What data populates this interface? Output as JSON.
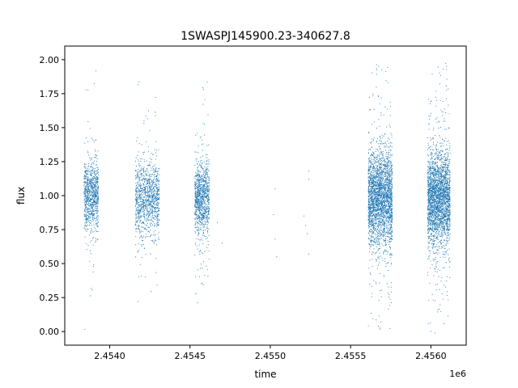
{
  "chart_data": {
    "type": "scatter",
    "title": "1SWASPJ145900.23-340627.8",
    "xlabel": "time",
    "ylabel": "flux",
    "x_offset_label": "1e6",
    "xlim": [
      2.45372,
      2.45622
    ],
    "ylim": [
      -0.1,
      2.1
    ],
    "x_ticks": [
      2.454,
      2.4545,
      2.455,
      2.4555,
      2.456
    ],
    "x_tick_labels": [
      "2.4540",
      "2.4545",
      "2.4550",
      "2.4555",
      "2.4560"
    ],
    "y_ticks": [
      0.0,
      0.25,
      0.5,
      0.75,
      1.0,
      1.25,
      1.5,
      1.75,
      2.0
    ],
    "y_tick_labels": [
      "0.00",
      "0.25",
      "0.50",
      "0.75",
      "1.00",
      "1.25",
      "1.50",
      "1.75",
      "2.00"
    ],
    "grid": false,
    "point_color": "#1f77b4",
    "series": [
      {
        "clusters": [
          {
            "x_range": [
              2.45384,
              2.45393
            ],
            "center": 1.0,
            "spread": 0.12,
            "count": 900
          },
          {
            "x_range": [
              2.45416,
              2.45431
            ],
            "center": 0.98,
            "spread": 0.13,
            "count": 1100
          },
          {
            "x_range": [
              2.45453,
              2.45462
            ],
            "center": 0.98,
            "spread": 0.13,
            "count": 1000
          },
          {
            "x_range": [
              2.45561,
              2.45576
            ],
            "center": 0.98,
            "spread": 0.17,
            "count": 2600
          },
          {
            "x_range": [
              2.45598,
              2.45612
            ],
            "center": 0.98,
            "spread": 0.17,
            "count": 2600
          }
        ],
        "sparse_points": [
          {
            "x": 2.45467,
            "y": 0.8
          },
          {
            "x": 2.4547,
            "y": 0.65
          },
          {
            "x": 2.45502,
            "y": 0.86
          },
          {
            "x": 2.45503,
            "y": 1.05
          },
          {
            "x": 2.45504,
            "y": 0.55
          },
          {
            "x": 2.45503,
            "y": 0.68
          },
          {
            "x": 2.45521,
            "y": 0.85
          },
          {
            "x": 2.45522,
            "y": 0.78
          },
          {
            "x": 2.45523,
            "y": 0.72
          },
          {
            "x": 2.45524,
            "y": 1.18
          },
          {
            "x": 2.45524,
            "y": 1.12
          },
          {
            "x": 2.45524,
            "y": 0.57
          }
        ]
      }
    ]
  }
}
